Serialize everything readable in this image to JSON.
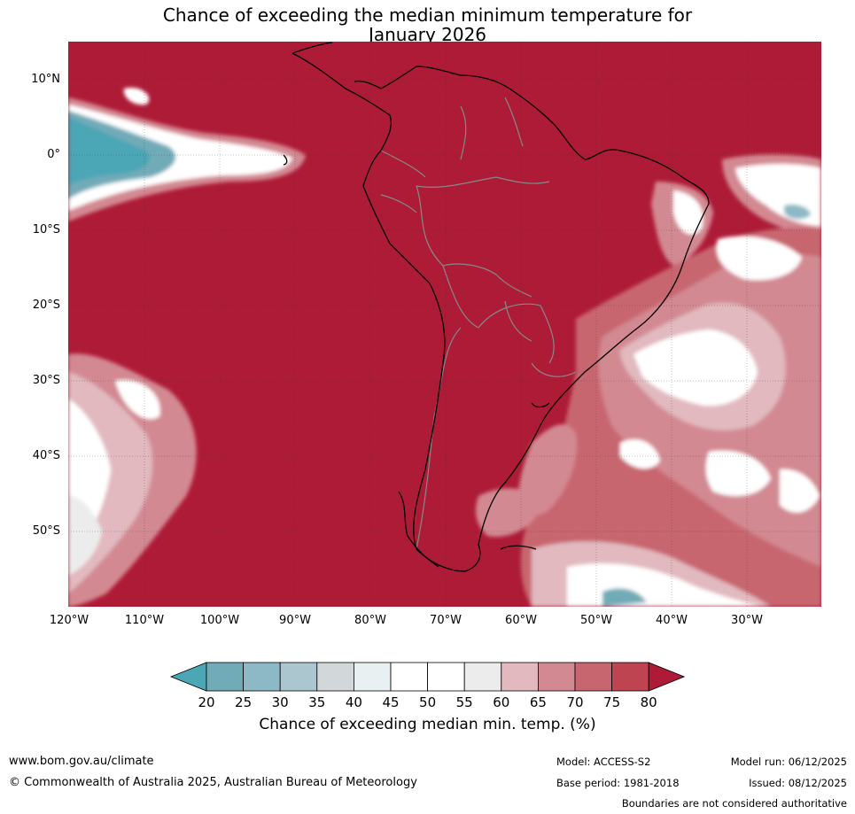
{
  "title": {
    "line1": "Chance of exceeding the median minimum temperature for",
    "line2": "January 2026"
  },
  "map": {
    "lat_labels": [
      "10°N",
      "0°",
      "10°S",
      "20°S",
      "30°S",
      "40°S",
      "50°S"
    ],
    "lon_labels": [
      "120°W",
      "110°W",
      "100°W",
      "90°W",
      "80°W",
      "70°W",
      "60°W",
      "50°W",
      "40°W",
      "30°W"
    ],
    "dominant_colour": "#ae1b37",
    "region": "South America"
  },
  "colorbar": {
    "ticks": [
      "20",
      "25",
      "30",
      "35",
      "40",
      "45",
      "50",
      "55",
      "60",
      "65",
      "70",
      "75",
      "80"
    ],
    "colors": [
      "#4ba6b5",
      "#72abb8",
      "#8db9c6",
      "#abc6ce",
      "#d2d8da",
      "#e9f0f1",
      "#ffffff",
      "#ffffff",
      "#ececec",
      "#e1b9bf",
      "#d38992",
      "#c8666f",
      "#be4452",
      "#ae1b37"
    ],
    "label": "Chance of exceeding median min. temp. (%)"
  },
  "footer": {
    "website": "www.bom.gov.au/climate",
    "copyright": "© Commonwealth of Australia 2025, Australian Bureau of Meteorology",
    "model": "Model: ACCESS-S2",
    "model_run": "Model run: 06/12/2025",
    "base_period": "Base period: 1981-2018",
    "issued": "Issued: 08/12/2025",
    "disclaimer": "Boundaries are not considered authoritative"
  }
}
